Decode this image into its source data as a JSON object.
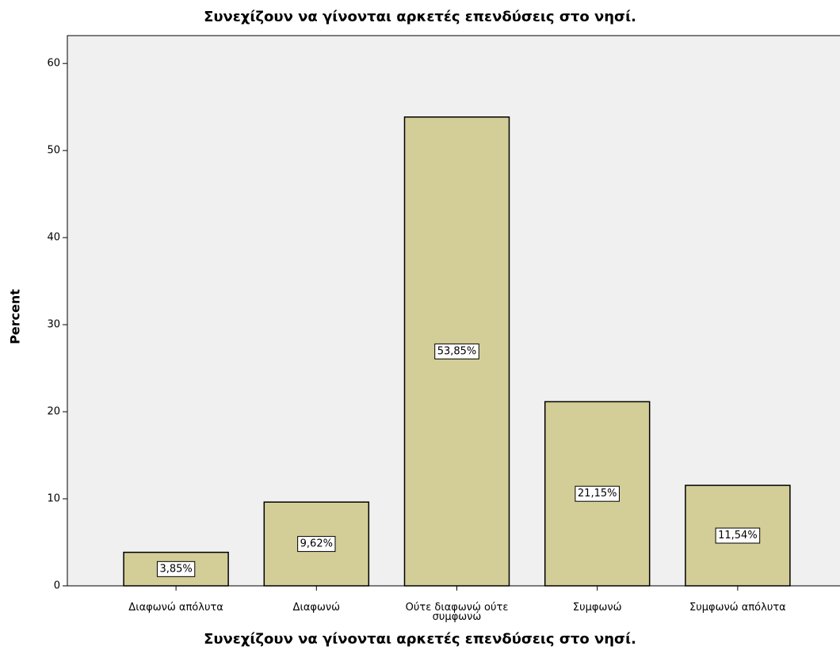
{
  "chart_data": {
    "type": "bar",
    "title": "Συνεχίζουν να γίνονται αρκετές επενδύσεις στο νησί.",
    "x_label": "Συνεχίζουν να γίνονται αρκετές επενδύσεις στο νησί.",
    "y_label": "Percent",
    "categories": [
      "Διαφωνώ απόλυτα",
      "Διαφωνώ",
      "Ούτε διαφωνώ ούτε συμφωνώ",
      "Συμφωνώ",
      "Συμφωνώ απόλυτα"
    ],
    "values": [
      3.85,
      9.62,
      53.85,
      21.15,
      11.54
    ],
    "value_labels": [
      "3,85%",
      "9,62%",
      "53,85%",
      "21,15%",
      "11,54%"
    ],
    "color": "#d3ce97",
    "ylim": [
      0,
      63.2
    ],
    "yticks": [
      0,
      10,
      20,
      30,
      40,
      50,
      60
    ],
    "grid": false
  }
}
